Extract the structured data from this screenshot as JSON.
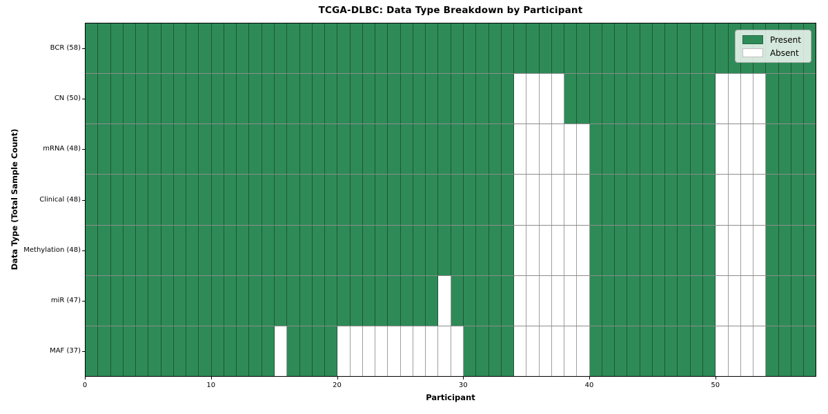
{
  "colors": {
    "present": "#2e8b57",
    "absent": "#ffffff"
  },
  "legend": {
    "items": [
      {
        "key": "present",
        "label": "Present",
        "color": "#2e8b57"
      },
      {
        "key": "absent",
        "label": "Absent",
        "color": "#ffffff"
      }
    ]
  },
  "chart_data": {
    "type": "heatmap",
    "title": "TCGA-DLBC: Data Type Breakdown by Participant",
    "xlabel": "Participant",
    "ylabel": "Data Type (Total Sample Count)",
    "n_participants": 58,
    "xlim": [
      0,
      58
    ],
    "x_ticks": [
      0,
      10,
      20,
      30,
      40,
      50
    ],
    "legend_position": "upper right",
    "grid": "cell borders on",
    "value_meaning": {
      "present": "Present",
      "absent": "Absent"
    },
    "rows": [
      {
        "label": "BCR (58)",
        "data_type": "BCR",
        "total_sample_count": 58,
        "absent_participants": []
      },
      {
        "label": "CN (50)",
        "data_type": "CN",
        "total_sample_count": 50,
        "absent_participants": [
          34,
          35,
          36,
          37,
          50,
          51,
          52,
          53
        ]
      },
      {
        "label": "mRNA (48)",
        "data_type": "mRNA",
        "total_sample_count": 48,
        "absent_participants": [
          34,
          35,
          36,
          37,
          38,
          39,
          50,
          51,
          52,
          53
        ]
      },
      {
        "label": "Clinical (48)",
        "data_type": "Clinical",
        "total_sample_count": 48,
        "absent_participants": [
          34,
          35,
          36,
          37,
          38,
          39,
          50,
          51,
          52,
          53
        ]
      },
      {
        "label": "Methylation (48)",
        "data_type": "Methylation",
        "total_sample_count": 48,
        "absent_participants": [
          34,
          35,
          36,
          37,
          38,
          39,
          50,
          51,
          52,
          53
        ]
      },
      {
        "label": "miR (47)",
        "data_type": "miR",
        "total_sample_count": 47,
        "absent_participants": [
          28,
          34,
          35,
          36,
          37,
          38,
          39,
          50,
          51,
          52,
          53
        ]
      },
      {
        "label": "MAF (37)",
        "data_type": "MAF",
        "total_sample_count": 37,
        "absent_participants": [
          15,
          20,
          21,
          22,
          23,
          24,
          25,
          26,
          27,
          28,
          29,
          34,
          35,
          36,
          37,
          38,
          39,
          50,
          51,
          52,
          53
        ]
      }
    ]
  }
}
